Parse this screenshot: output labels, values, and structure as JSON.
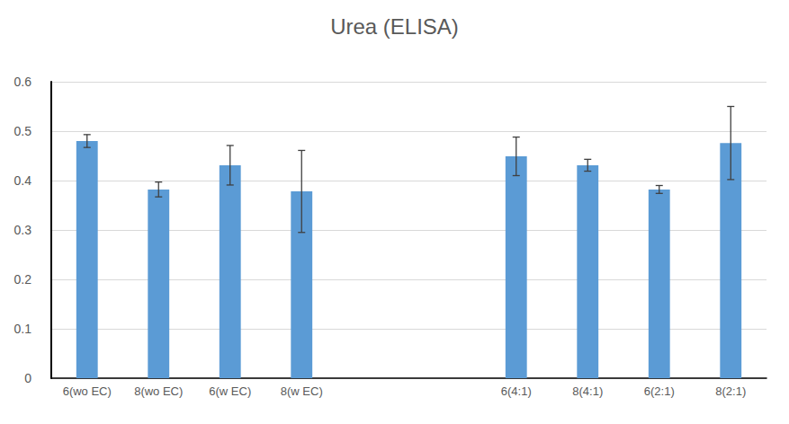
{
  "chart_data": {
    "type": "bar",
    "title": "Urea (ELISA)",
    "categories": [
      "6(wo EC)",
      "8(wo EC)",
      "6(w EC)",
      "8(w EC)",
      null,
      null,
      "6(4:1)",
      "8(4:1)",
      "6(2:1)",
      "8(2:1)"
    ],
    "values": [
      0.48,
      0.382,
      0.431,
      0.378,
      null,
      null,
      0.449,
      0.431,
      0.382,
      0.476
    ],
    "errors": [
      0.013,
      0.015,
      0.04,
      0.083,
      null,
      null,
      0.039,
      0.012,
      0.008,
      0.074
    ],
    "color": "#5b9bd5",
    "ylim": [
      0,
      0.6
    ],
    "yticks": [
      0,
      0.1,
      0.2,
      0.3,
      0.4,
      0.5,
      0.6
    ],
    "grid": true
  }
}
